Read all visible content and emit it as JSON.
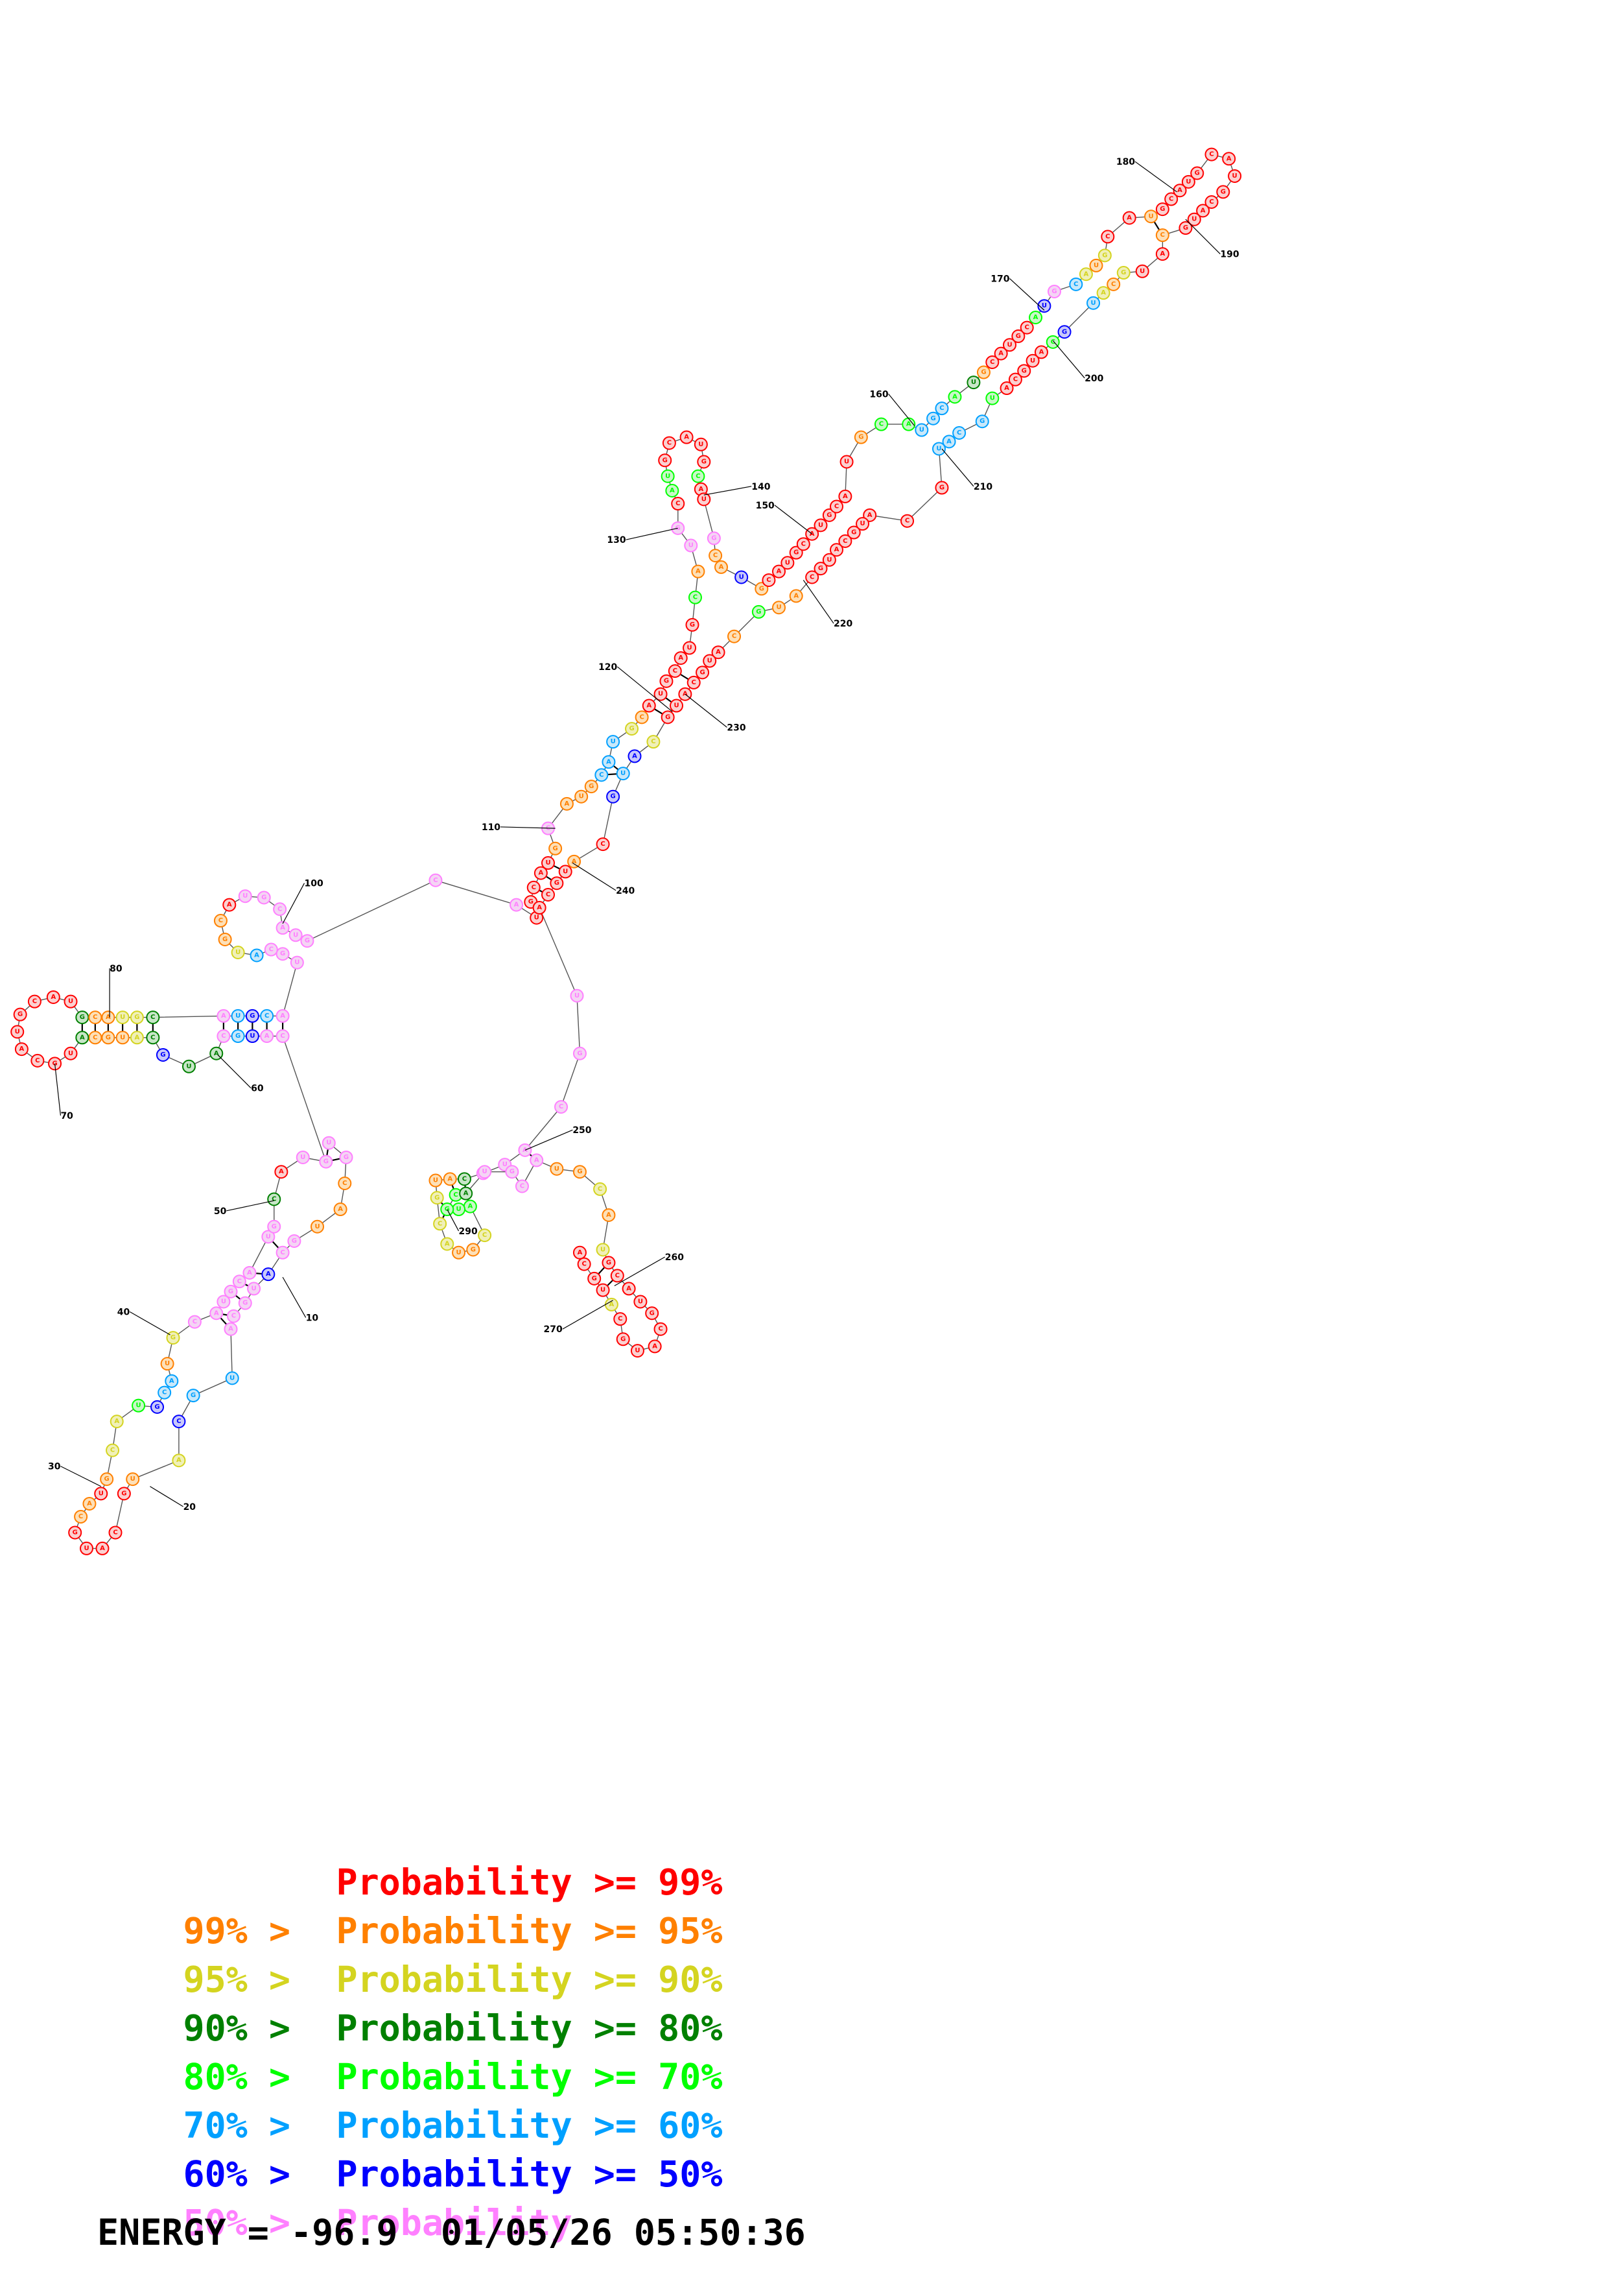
{
  "diagram": {
    "index_labels": [
      "10",
      "20",
      "30",
      "40",
      "50",
      "60",
      "70",
      "80",
      "100",
      "110",
      "120",
      "130",
      "140",
      "150",
      "160",
      "170",
      "180",
      "190",
      "200",
      "210",
      "220",
      "230",
      "240",
      "250",
      "260",
      "270",
      "290"
    ],
    "colors": {
      "p99": "#ff0000",
      "p95": "#ff8000",
      "p90": "#d4d420",
      "p80": "#008000",
      "p70": "#00ff00",
      "p60": "#00a0ff",
      "p50": "#0000ff",
      "plt50": "#ff80ff"
    }
  },
  "legend": [
    {
      "prefix": "",
      "label": "Probability >= 99%",
      "color": "#ff0000"
    },
    {
      "prefix": "99% > ",
      "label": "Probability >= 95%",
      "color": "#ff8000"
    },
    {
      "prefix": "95% > ",
      "label": "Probability >= 90%",
      "color": "#d4d420"
    },
    {
      "prefix": "90% > ",
      "label": "Probability >= 80%",
      "color": "#008000"
    },
    {
      "prefix": "80% > ",
      "label": "Probability >= 70%",
      "color": "#00ff00"
    },
    {
      "prefix": "70% > ",
      "label": "Probability >= 60%",
      "color": "#00a0ff"
    },
    {
      "prefix": "60% > ",
      "label": "Probability >= 50%",
      "color": "#0000ff"
    },
    {
      "prefix": "50% > ",
      "label": "Probability",
      "color": "#ff80ff"
    }
  ],
  "footer": {
    "energy_label": "ENERGY = -96.9",
    "timestamp": "01/05/26 05:50:36"
  }
}
